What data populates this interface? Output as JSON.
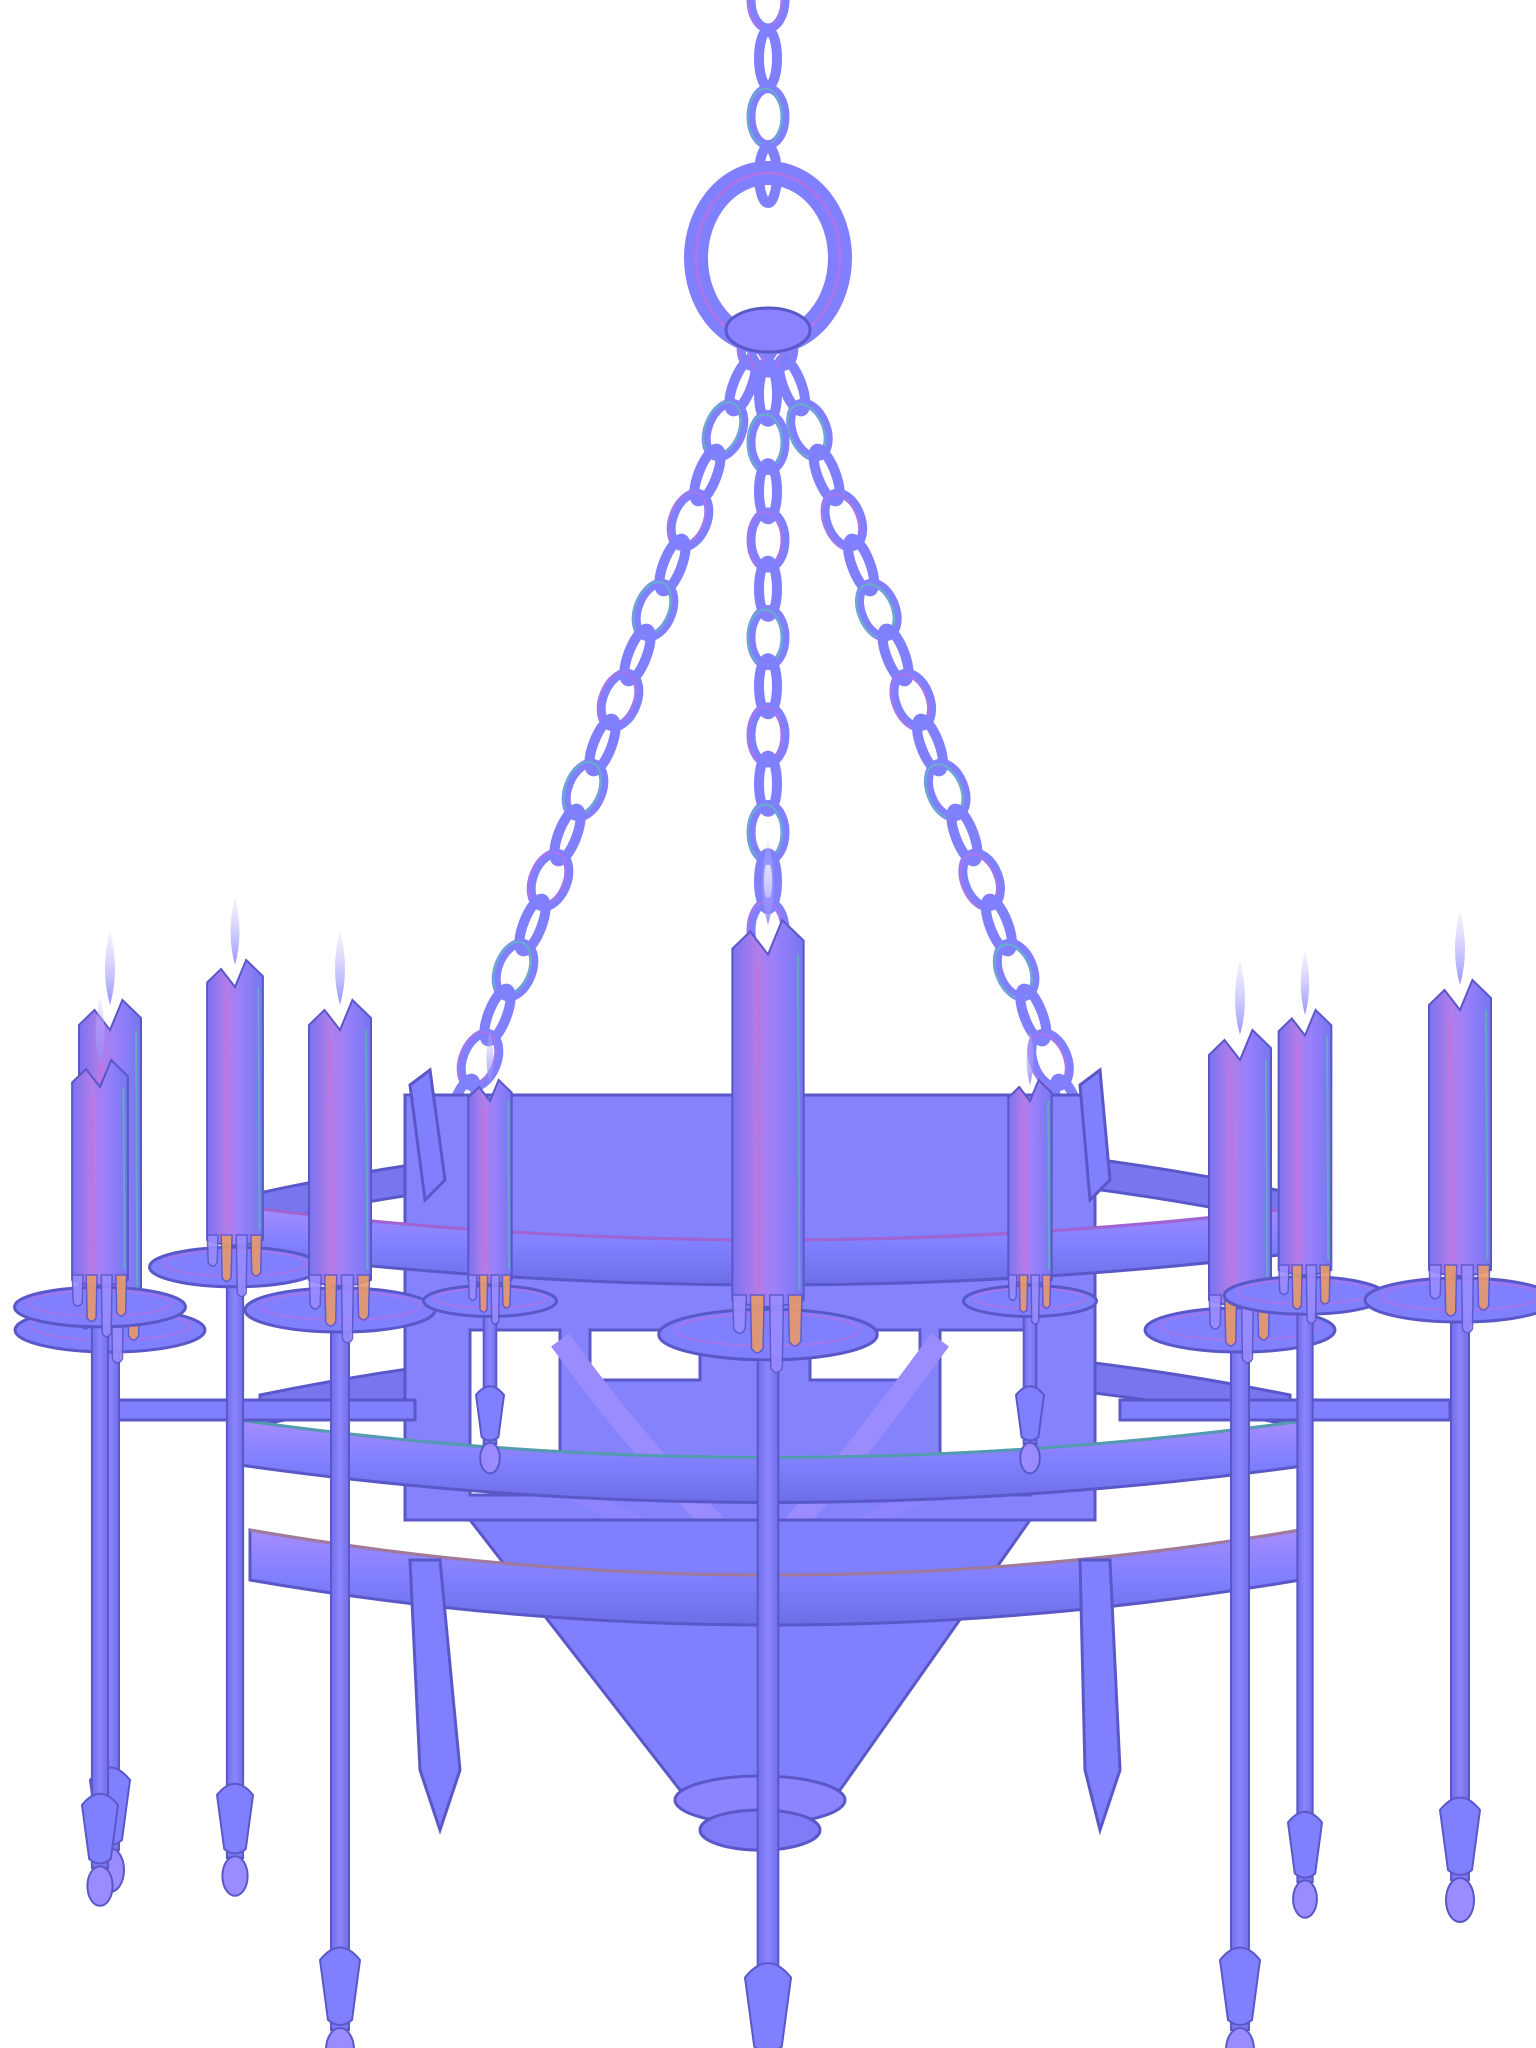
{
  "image": {
    "subject": "chandelier-normal-map",
    "background_color": "#ffffff",
    "colors": {
      "base": "#8080ff",
      "base_light": "#9a8cff",
      "shade": "#6f6ee8",
      "highlight_magenta": "#d06ad8",
      "highlight_green": "#4fd69a",
      "highlight_orange": "#e89a6a",
      "edge_dark": "#5a58c8"
    },
    "parts": {
      "chains": 4,
      "candles": 11,
      "ring_bands": 3
    }
  }
}
